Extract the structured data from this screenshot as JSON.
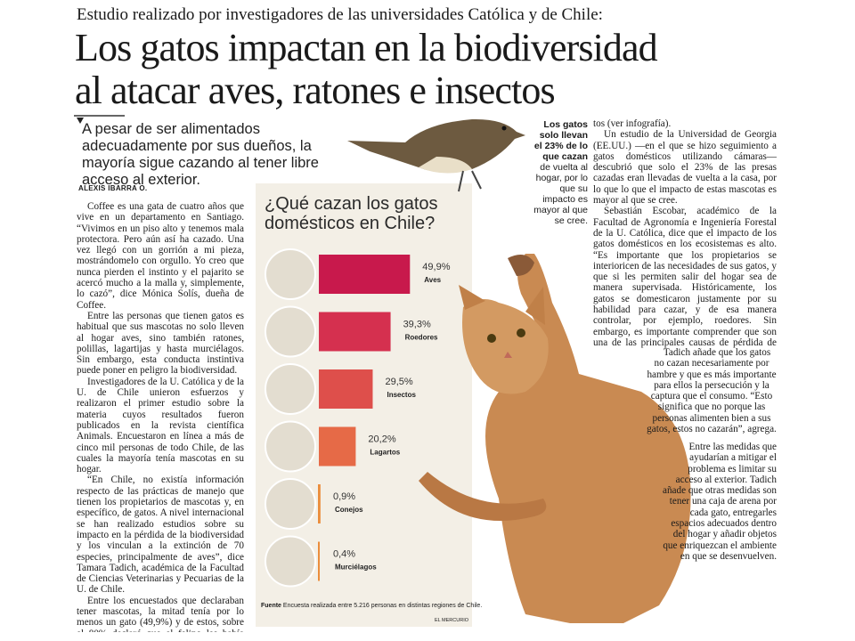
{
  "header": {
    "kicker": "Estudio realizado por investigadores de las universidades Católica y de Chile:",
    "title": [
      "Los gatos impactan en la biodiversidad",
      "al atacar aves, ratones e insectos"
    ]
  },
  "lead": "A pesar de ser alimentados adecuadamente por sus dueños, la mayoría sigue cazando al tener libre acceso al exterior.",
  "author": "ALEXIS IBARRA O.",
  "left_column": [
    "Coffee es una gata de cuatro años que vive en un departamento en Santiago. “Vivimos en un piso alto y tenemos mala protectora. Pero aún así ha cazado. Una vez llegó con un gorrión a mi pieza, mostrándomelo con orgullo. Yo creo que nunca pierden el instinto y el pajarito se acercó mucho a la malla y, simplemente, lo cazó”, dice Mónica Solís, dueña de Coffee.",
    "Entre las personas que tienen gatos es habitual que sus mascotas no solo lleven al hogar aves, sino también ratones, polillas, lagartijas y hasta murciélagos. Sin embargo, esta conducta instintiva puede poner en peligro la biodiversidad.",
    "Investigadores de la U. Católica y de la U. de Chile unieron esfuerzos y realizaron el primer estudio sobre la materia cuyos resultados fueron publicados en la revista científica Animals. Encuestaron en línea a más de cinco mil personas de todo Chile, de las cuales la mayoría tenía mascotas en su hogar.",
    "“En Chile, no existía información respecto de las prácticas de manejo que tienen los propietarios de mascotas y, en específico, de gatos. A nivel internacional se han realizado estudios sobre su impacto en la pérdida de la biodiversidad y los vinculan a la extinción de 70 especies, principalmente de aves”, dice Tamara Tadich, académica de la Facultad de Ciencias Veterinarias y Pecuarias de la U. de Chile.",
    "Entre los encuestados que declaraban tener mascotas, la mitad tenía por lo menos un gato (49,9%) y de estos, sobre el 80% declaró que el felino les había llevado presas al hogar. La mitad eran aves, le seguían roedores e insec-"
  ],
  "sidebar": {
    "bold": "Los gatos solo llevan el 23% de lo que cazan",
    "text": "de vuelta al hogar, por lo que su impacto es mayor al que se cree."
  },
  "right_column": [
    "tos (ver infografía).",
    "Un estudio de la Universidad de Georgia (EE.UU.) —en el que se hizo seguimiento a gatos domésticos utilizando cámaras— descubrió que solo el 23% de las presas cazadas eran llevadas de vuelta a la casa, por lo que lo que el impacto de estas mascotas es mayor al que se cree.",
    "Sebastián Escobar, académico de la Facultad de Agronomía e Ingeniería Forestal de la U. Católica, dice que el impacto de los gatos domésticos en los ecosistemas es alto. “Es importante que los propietarios se interioricen de las necesidades de sus gatos, y que si les permiten salir del hogar sea de manera supervisada. Históricamente, los gatos se domesticaron justamente por su habilidad para cazar, y de esa manera controlar, por ejemplo, roedores. Sin embargo, es importante comprender que son una de las principales causas de pérdida de biodiversidad”, dice.",
    "Tadich añade que los gatos no cazan necesariamente por hambre y que es más importante para ellos la persecución y la captura que el consumo. “Esto significa que no porque las personas alimenten bien a sus gatos, estos no cazarán”, agrega.",
    "Entre las medidas que ayudarían a mitigar el problema es limitar su acceso al exterior. Tadich añade que otras medidas son tener una caja de arena por cada gato, entregarles espacios adecuados dentro del hogar y añadir objetos que enriquezcan el ambiente en que se desenvuelven."
  ],
  "infographic": {
    "title": "¿Qué cazan los gatos domésticos en Chile?",
    "chart_data": {
      "type": "bar",
      "categories": [
        "Aves",
        "Roedores",
        "Insectos",
        "Lagartos",
        "Conejos",
        "Murciélagos"
      ],
      "values": [
        49.9,
        39.3,
        29.5,
        20.2,
        0.9,
        0.4
      ],
      "value_labels": [
        "49,9%",
        "39,3%",
        "29,5%",
        "20,2%",
        "0,9%",
        "0,4%"
      ],
      "colors": [
        "#c8194c",
        "#d5304f",
        "#de4f4b",
        "#e66a47",
        "#eb8d3c",
        "#eb8d3c"
      ]
    },
    "source_label": "Fuente",
    "source": "Encuesta realizada entre 5.216 personas en distintas regiones de Chile.",
    "credit": "EL MERCURIO"
  }
}
